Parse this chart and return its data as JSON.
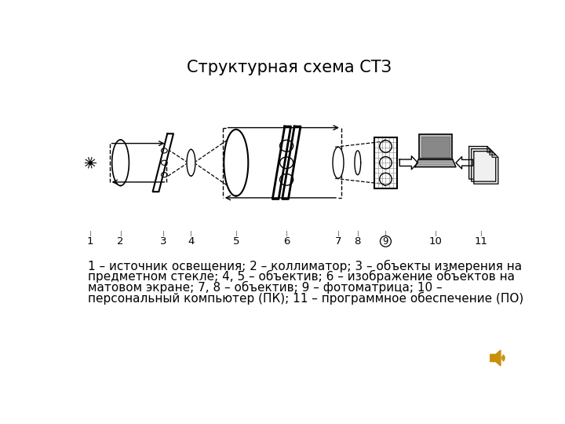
{
  "title": "Структурная схема СТЗ",
  "title_fontsize": 15,
  "bg_color": "#ffffff",
  "text_color": "#000000",
  "line_color": "#000000",
  "gray_fill": "#aaaaaa",
  "light_gray": "#cccccc",
  "mid_gray": "#888888",
  "grid_color": "#999999",
  "speaker_color": "#c8900a",
  "description_lines": [
    "1 – источник освещения; 2 – коллиматор; 3 – объекты измерения на",
    "предметном стекле; 4, 5 – объектив; 6 – изображение объектов на",
    "матовом экране; 7, 8 – объектив; 9 – фотоматрица; 10 –",
    "персональный компьютер (ПК); 11 – программное обеспечение (ПО)"
  ],
  "desc_numbers": [
    "1",
    "2",
    "3",
    "4",
    "5",
    "6",
    "7",
    "8",
    "9",
    "10",
    "11"
  ],
  "desc_italic": [
    "1",
    "2",
    "3",
    "4",
    "5",
    "6",
    "7",
    "8",
    "9",
    "10",
    "11"
  ]
}
